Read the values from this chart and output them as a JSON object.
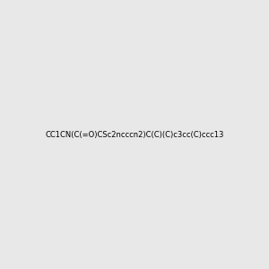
{
  "smiles": "CC1CN(C(=O)CSc2ncccn2)C(C)(C)c3cc(C)ccc13",
  "title": "",
  "bg_color": "#e8e8e8",
  "bond_color": "#000000",
  "n_color": "#0000ff",
  "o_color": "#ff0000",
  "s_color": "#cccc00",
  "figsize": [
    3.0,
    3.0
  ],
  "dpi": 100
}
